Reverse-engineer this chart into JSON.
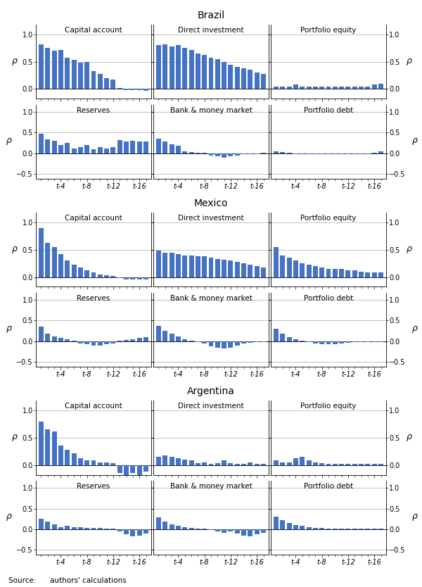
{
  "countries": [
    "Brazil",
    "Mexico",
    "Argentina"
  ],
  "panel_titles_row1": [
    "Capital account",
    "Direct investment",
    "Portfolio equity"
  ],
  "panel_titles_row2": [
    "Reserves",
    "Bank & money market",
    "Portfolio debt"
  ],
  "bar_color": "#4472C4",
  "yticks_row1": [
    0.0,
    0.5,
    1.0
  ],
  "yticks_row2": [
    -0.5,
    0.0,
    0.5,
    1.0
  ],
  "ylim_row1": [
    -0.18,
    1.18
  ],
  "ylim_row2": [
    -0.62,
    1.18
  ],
  "n_lags": 17,
  "xlabel_ticks": [
    3,
    7,
    11,
    15
  ],
  "xlabel_labels": [
    "t-4",
    "t-8",
    "t-12",
    "t-16"
  ],
  "source_text": "Source:      authors' calculations",
  "data": {
    "Brazil": {
      "Capital account": [
        0.82,
        0.75,
        0.7,
        0.72,
        0.58,
        0.53,
        0.48,
        0.5,
        0.33,
        0.28,
        0.2,
        0.18,
        0.02,
        -0.02,
        -0.02,
        -0.02,
        -0.03
      ],
      "Direct investment": [
        0.8,
        0.82,
        0.78,
        0.8,
        0.75,
        0.72,
        0.65,
        0.63,
        0.58,
        0.55,
        0.5,
        0.45,
        0.4,
        0.38,
        0.35,
        0.3,
        0.28
      ],
      "Portfolio equity": [
        0.05,
        0.05,
        0.05,
        0.08,
        0.05,
        0.05,
        0.05,
        0.05,
        0.05,
        0.05,
        0.05,
        0.05,
        0.05,
        0.05,
        0.05,
        0.08,
        0.1
      ],
      "Reserves": [
        0.48,
        0.33,
        0.3,
        0.2,
        0.25,
        0.12,
        0.15,
        0.2,
        0.1,
        0.15,
        0.12,
        0.15,
        0.32,
        0.28,
        0.3,
        0.28,
        0.28
      ],
      "Bank & money market": [
        0.35,
        0.28,
        0.22,
        0.18,
        0.05,
        0.03,
        0.02,
        0.02,
        -0.05,
        -0.08,
        -0.1,
        -0.08,
        -0.05,
        -0.03,
        -0.03,
        -0.02,
        0.02
      ],
      "Portfolio debt": [
        0.05,
        0.03,
        0.02,
        -0.02,
        -0.02,
        -0.03,
        -0.03,
        -0.03,
        -0.02,
        -0.03,
        -0.03,
        -0.02,
        -0.02,
        -0.02,
        -0.03,
        0.02,
        0.05
      ]
    },
    "Mexico": {
      "Capital account": [
        0.9,
        0.62,
        0.55,
        0.42,
        0.3,
        0.22,
        0.18,
        0.12,
        0.08,
        0.05,
        0.03,
        0.02,
        -0.02,
        -0.05,
        -0.05,
        -0.05,
        -0.05
      ],
      "Direct investment": [
        0.48,
        0.45,
        0.45,
        0.42,
        0.4,
        0.4,
        0.38,
        0.38,
        0.35,
        0.33,
        0.32,
        0.3,
        0.28,
        0.25,
        0.22,
        0.2,
        0.18
      ],
      "Portfolio equity": [
        0.55,
        0.4,
        0.35,
        0.3,
        0.25,
        0.22,
        0.2,
        0.18,
        0.15,
        0.15,
        0.15,
        0.12,
        0.12,
        0.1,
        0.08,
        0.08,
        0.08
      ],
      "Reserves": [
        0.35,
        0.18,
        0.12,
        0.08,
        0.05,
        0.02,
        -0.05,
        -0.08,
        -0.1,
        -0.1,
        -0.08,
        -0.05,
        0.02,
        0.03,
        0.05,
        0.08,
        0.1
      ],
      "Bank & money market": [
        0.38,
        0.25,
        0.18,
        0.12,
        0.05,
        0.02,
        -0.02,
        -0.05,
        -0.12,
        -0.15,
        -0.18,
        -0.15,
        -0.1,
        -0.05,
        -0.03,
        -0.02,
        -0.02
      ],
      "Portfolio debt": [
        0.3,
        0.18,
        0.1,
        0.05,
        0.02,
        -0.02,
        -0.05,
        -0.08,
        -0.08,
        -0.08,
        -0.05,
        -0.03,
        -0.02,
        -0.02,
        -0.02,
        -0.02,
        -0.02
      ]
    },
    "Argentina": {
      "Capital account": [
        0.8,
        0.65,
        0.62,
        0.35,
        0.28,
        0.22,
        0.12,
        0.08,
        0.08,
        0.05,
        0.05,
        0.03,
        -0.15,
        -0.18,
        -0.15,
        -0.18,
        -0.12
      ],
      "Direct investment": [
        0.15,
        0.18,
        0.15,
        0.12,
        0.1,
        0.08,
        0.03,
        0.05,
        0.02,
        0.03,
        0.08,
        0.03,
        0.02,
        0.02,
        0.05,
        0.02,
        0.02
      ],
      "Portfolio equity": [
        0.08,
        0.05,
        0.05,
        0.12,
        0.15,
        0.08,
        0.05,
        0.03,
        0.02,
        0.02,
        0.02,
        0.02,
        0.02,
        0.02,
        0.02,
        0.02,
        0.02
      ],
      "Reserves": [
        0.25,
        0.18,
        0.12,
        0.05,
        0.08,
        0.05,
        0.05,
        0.03,
        0.03,
        0.03,
        0.02,
        0.02,
        -0.05,
        -0.12,
        -0.18,
        -0.15,
        -0.1
      ],
      "Bank & money market": [
        0.28,
        0.18,
        0.12,
        0.08,
        0.05,
        0.03,
        0.02,
        0.02,
        -0.02,
        -0.05,
        -0.08,
        -0.05,
        -0.1,
        -0.15,
        -0.18,
        -0.12,
        -0.08
      ],
      "Portfolio debt": [
        0.3,
        0.22,
        0.15,
        0.1,
        0.08,
        0.05,
        0.03,
        0.03,
        0.02,
        0.02,
        0.02,
        0.02,
        0.02,
        0.02,
        0.02,
        0.02,
        0.02
      ]
    }
  }
}
